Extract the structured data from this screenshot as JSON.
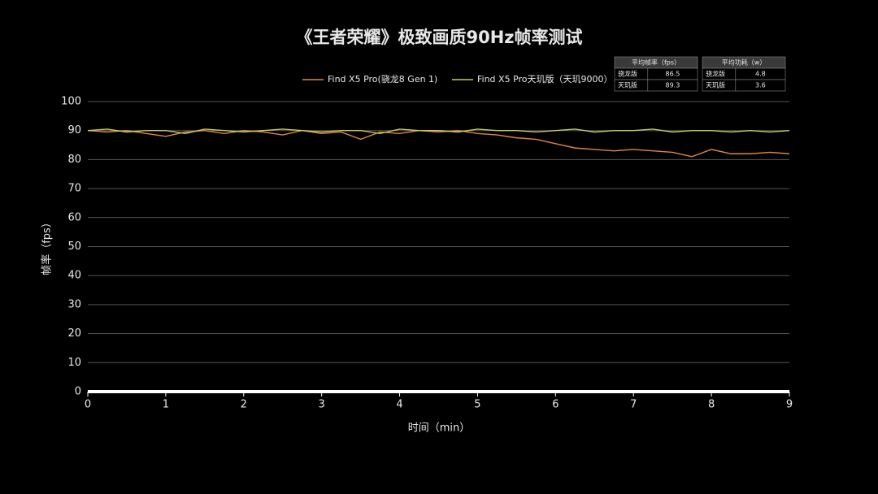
{
  "chart_data": {
    "type": "line",
    "title": "《王者荣耀》极致画质90Hz帧率测试",
    "x_label": "时间（min）",
    "y_label": "帧率（fps）",
    "xlim": [
      0,
      9
    ],
    "ylim": [
      0,
      100
    ],
    "xticks": [
      0,
      1,
      2,
      3,
      4,
      5,
      6,
      7,
      8,
      9
    ],
    "yticks": [
      0,
      10,
      20,
      30,
      40,
      50,
      60,
      70,
      80,
      90,
      100
    ],
    "grid": true,
    "x": [
      0,
      0.25,
      0.5,
      0.75,
      1,
      1.25,
      1.5,
      1.75,
      2,
      2.25,
      2.5,
      2.75,
      3,
      3.25,
      3.5,
      3.75,
      4,
      4.25,
      4.5,
      4.75,
      5,
      5.25,
      5.5,
      5.75,
      6,
      6.25,
      6.5,
      6.75,
      7,
      7.25,
      7.5,
      7.75,
      8,
      8.25,
      8.5,
      8.75,
      9
    ],
    "series": [
      {
        "name": "Find X5 Pro(骁龙8 Gen 1)",
        "color": "#e0883a",
        "values": [
          90,
          89.5,
          90,
          89,
          88,
          89.5,
          90,
          89,
          90,
          89.5,
          88.5,
          90,
          89,
          89.5,
          87,
          89.5,
          89,
          90,
          89.5,
          90,
          89,
          88.5,
          87.5,
          87,
          85.5,
          84,
          83.5,
          83,
          83.5,
          83,
          82.5,
          81,
          83.5,
          82,
          82,
          82.5,
          82
        ]
      },
      {
        "name": "Find X5 Pro天玑版（天玑9000）",
        "color": "#c2cc62",
        "values": [
          90,
          90.5,
          89.5,
          90,
          90,
          89,
          90.5,
          90,
          89.5,
          90,
          90.5,
          90,
          89.5,
          90,
          90,
          89,
          90.5,
          90,
          90,
          89.5,
          90.5,
          90,
          90,
          89.5,
          90,
          90.5,
          89.5,
          90,
          90,
          90.5,
          89.5,
          90,
          90,
          89.5,
          90,
          89.5,
          90
        ]
      }
    ],
    "tables": [
      {
        "header": "平均帧率（fps）",
        "rows": [
          [
            "骁龙版",
            86.5
          ],
          [
            "天玑版",
            89.3
          ]
        ]
      },
      {
        "header": "平均功耗（w）",
        "rows": [
          [
            "骁龙版",
            4.8
          ],
          [
            "天玑版",
            3.6
          ]
        ]
      }
    ]
  }
}
